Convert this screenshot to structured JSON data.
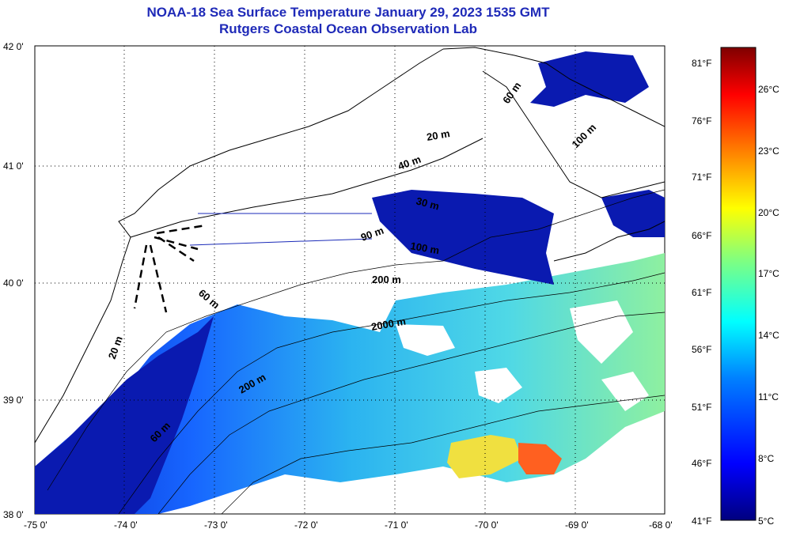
{
  "title": {
    "line1": "NOAA-18 Sea Surface Temperature January 29, 2023 1535 GMT",
    "line2": "Rutgers Coastal Ocean Observation Lab"
  },
  "axes": {
    "longitude_ticks": [
      "-75 0'",
      "-74 0'",
      "-73 0'",
      "-72 0'",
      "-71 0'",
      "-70 0'",
      "-69 0'",
      "-68 0'"
    ],
    "latitude_ticks": [
      "42 0'",
      "41 0'",
      "40 0'",
      "39 0'",
      "38 0'"
    ]
  },
  "contour_labels": [
    "20 m",
    "40 m",
    "100 m",
    "60 m",
    "30 m",
    "90 m",
    "100 m",
    "200 m",
    "60 m",
    "2000 m",
    "20 m",
    "200 m",
    "60 m"
  ],
  "colorbar": {
    "fahrenheit_ticks": [
      "81°F",
      "76°F",
      "71°F",
      "66°F",
      "61°F",
      "56°F",
      "51°F",
      "46°F",
      "41°F"
    ],
    "celsius_ticks": [
      "26°C",
      "23°C",
      "20°C",
      "17°C",
      "14°C",
      "11°C",
      "8°C",
      "5°C"
    ],
    "colors": [
      "#00007f",
      "#0000ff",
      "#0080ff",
      "#00ffff",
      "#80ff80",
      "#ffff00",
      "#ff8000",
      "#ff0000",
      "#7f0000"
    ]
  },
  "colors": {
    "title": "#1f2ab8",
    "cold": "#0a1ab0",
    "mid": "#1c8ef0",
    "warm": "#58e0e8",
    "hot": "#ff6020"
  }
}
